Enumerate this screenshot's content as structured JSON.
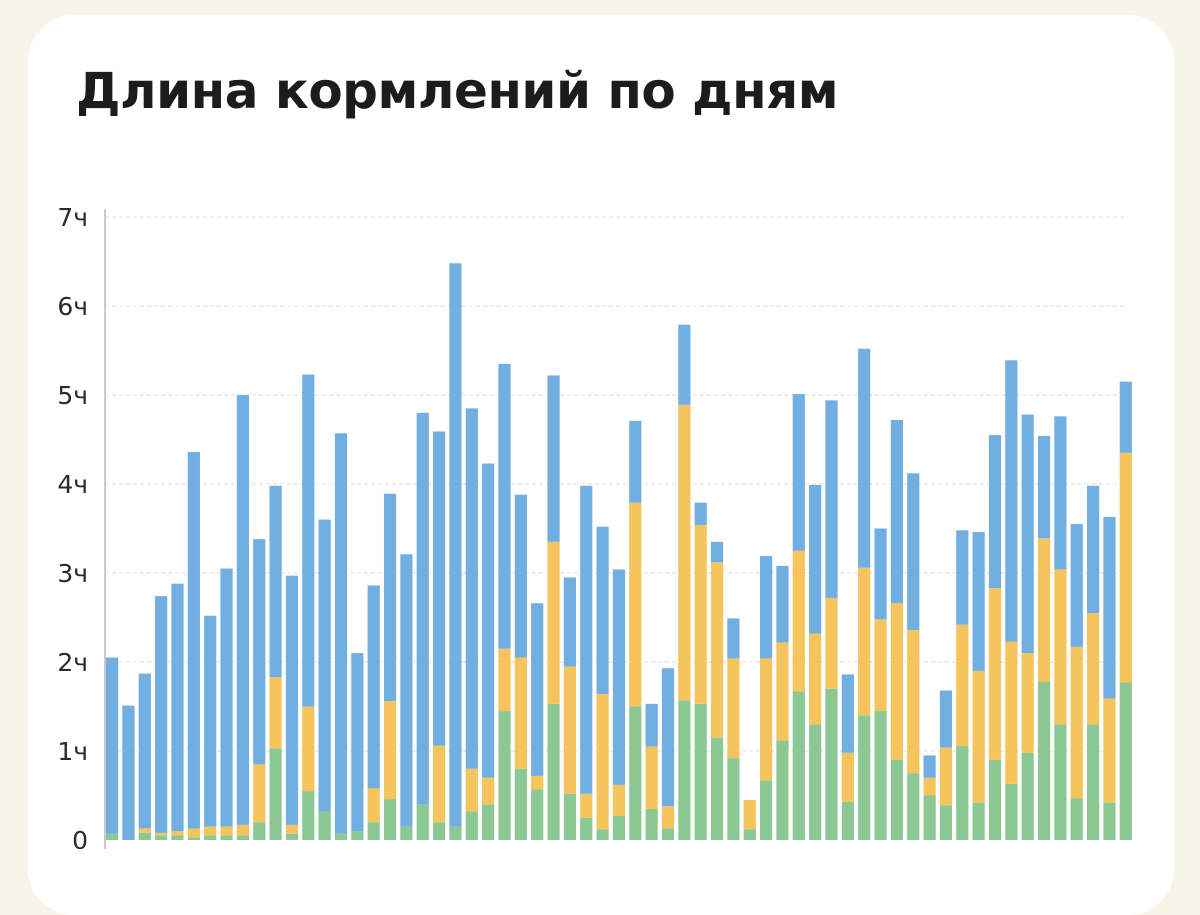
{
  "title": "Длина кормлений по дням",
  "colors": {
    "page_bg": "#f7f5ea",
    "card_bg": "#ffffff",
    "series_green": "#8cc893",
    "series_yellow": "#f6c45c",
    "series_blue": "#71aee2",
    "grid": "#dcdcdc",
    "axis": "#b9b9b9"
  },
  "chart_data": {
    "type": "bar",
    "stacked": true,
    "ylim": [
      0,
      7
    ],
    "yticks": [
      "0",
      "1ч",
      "2ч",
      "3ч",
      "4ч",
      "5ч",
      "6ч",
      "7ч"
    ],
    "grid": true,
    "series": [
      {
        "color": "#8cc893",
        "values": [
          0.07,
          0,
          0.08,
          0.05,
          0.05,
          0.03,
          0.05,
          0.05,
          0.05,
          0.2,
          1.03,
          0.07,
          0.55,
          0.32,
          0.07,
          0.1,
          0.2,
          0.46,
          0.15,
          0.4,
          0.2,
          0.15,
          0.32,
          0.4,
          1.45,
          0.8,
          0.57,
          1.53,
          0.52,
          0.25,
          0.12,
          0.27,
          1.5,
          0.35,
          0.13,
          1.57,
          1.53,
          1.15,
          0.92,
          0.12,
          0.67,
          1.12,
          1.67,
          1.3,
          1.7,
          0.43,
          1.4,
          1.45,
          0.9,
          0.75,
          0.5,
          0.39,
          1.06,
          0.42,
          0.9,
          0.63,
          0.98,
          1.78,
          1.3,
          0.47,
          1.3,
          0.42,
          1.77
        ]
      },
      {
        "color": "#f6c45c",
        "values": [
          0,
          0,
          0.05,
          0.03,
          0.05,
          0.1,
          0.1,
          0.1,
          0.12,
          0.65,
          0.8,
          0.1,
          0.95,
          0,
          0,
          0,
          0.38,
          1.1,
          0,
          0,
          0.86,
          0,
          0.48,
          0.3,
          0.7,
          1.25,
          0.15,
          1.82,
          1.43,
          0.27,
          1.52,
          0.35,
          2.29,
          0.7,
          0.25,
          3.32,
          2.01,
          1.97,
          1.12,
          0.33,
          1.37,
          1.1,
          1.58,
          1.02,
          1.02,
          0.55,
          1.66,
          1.03,
          1.76,
          1.61,
          0.2,
          0.65,
          1.36,
          1.48,
          1.93,
          1.6,
          1.12,
          1.61,
          1.74,
          1.7,
          1.25,
          1.17,
          2.58
        ]
      },
      {
        "color": "#71aee2",
        "values": [
          1.98,
          1.51,
          1.74,
          2.66,
          2.78,
          4.23,
          2.37,
          2.9,
          4.83,
          2.53,
          2.15,
          2.8,
          3.73,
          3.28,
          4.5,
          2.0,
          2.28,
          2.33,
          3.06,
          4.4,
          3.53,
          6.33,
          4.05,
          3.53,
          3.2,
          1.83,
          1.94,
          1.87,
          1.0,
          3.46,
          1.88,
          2.42,
          0.92,
          0.48,
          1.55,
          0.9,
          0.25,
          0.23,
          0.45,
          0,
          1.15,
          0.86,
          1.76,
          1.67,
          2.22,
          0.88,
          2.46,
          1.02,
          2.06,
          1.76,
          0.25,
          0.64,
          1.06,
          1.56,
          1.72,
          3.16,
          2.68,
          1.15,
          1.72,
          1.38,
          1.43,
          2.04,
          0.8
        ]
      }
    ]
  }
}
